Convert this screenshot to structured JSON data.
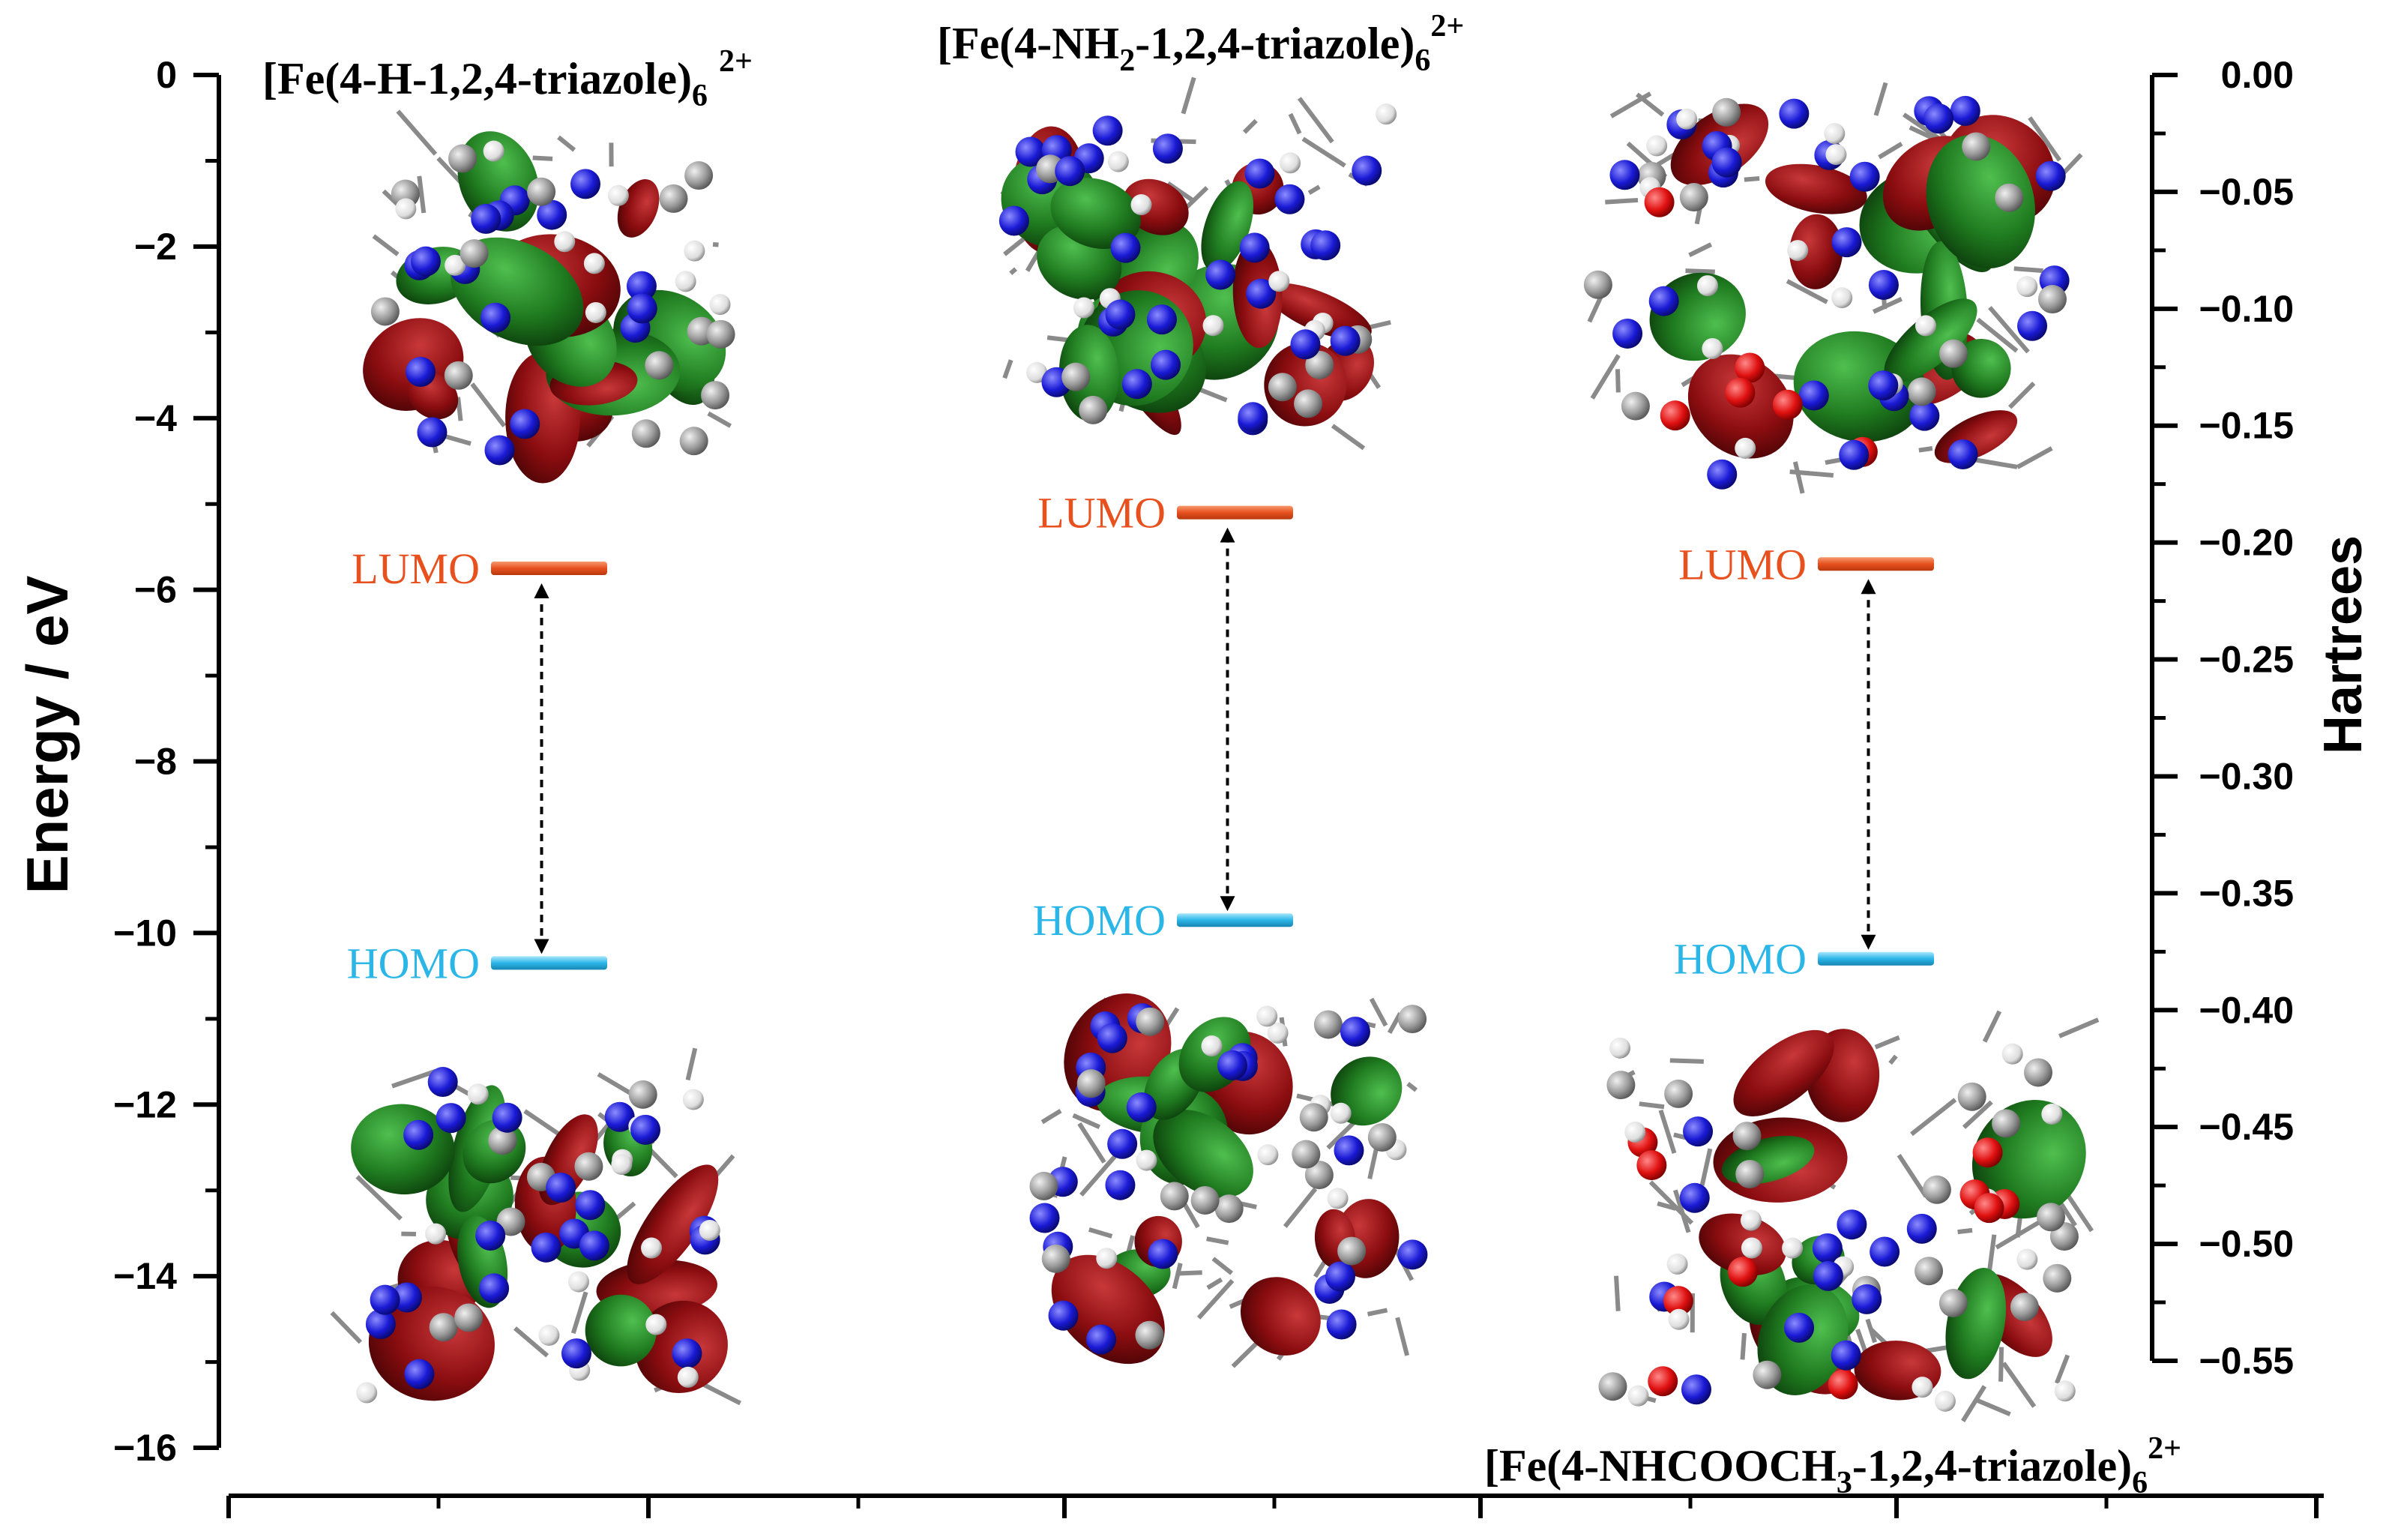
{
  "chart_data": {
    "type": "energy-level-diagram",
    "left_axis": {
      "label": "Energy / eV",
      "min": -16,
      "max": 0,
      "ticks": [
        0,
        -2,
        -4,
        -6,
        -8,
        -10,
        -12,
        -14,
        -16
      ],
      "tick_labels": [
        "0",
        "−2",
        "−4",
        "−6",
        "−8",
        "−10",
        "−12",
        "−14",
        "−16"
      ]
    },
    "right_axis": {
      "label": "Hartrees",
      "min": -0.55,
      "max": 0.0,
      "ticks": [
        0.0,
        -0.05,
        -0.1,
        -0.15,
        -0.2,
        -0.25,
        -0.3,
        -0.35,
        -0.4,
        -0.45,
        -0.5,
        -0.55
      ],
      "tick_labels": [
        "0.00",
        "−0.05",
        "−0.10",
        "−0.15",
        "−0.20",
        "−0.25",
        "−0.30",
        "−0.35",
        "−0.40",
        "−0.45",
        "−0.50",
        "−0.55"
      ]
    },
    "level_labels": {
      "lumo": "LUMO",
      "homo": "HOMO"
    },
    "colors": {
      "lumo": "#e8501e",
      "homo": "#2bb6e8",
      "axis": "#000000",
      "orbital_red": "#8b0d10",
      "orbital_green": "#1f7a1f",
      "atom_n": "#1a1ad6",
      "atom_c": "#9a9a9a",
      "atom_o": "#e01010",
      "atom_h": "#ffffff"
    },
    "compounds": [
      {
        "title_main": "[Fe(4-H-1,2,4-triazole)",
        "title_sub": "6",
        "title_sup": "2+",
        "title_pos": "top",
        "lumo_eV": -5.75,
        "homo_eV": -10.35
      },
      {
        "title_main_a": "[Fe(4-NH",
        "title_sub_a": "2",
        "title_main_b": "-1,2,4-triazole)",
        "title_sub": "6",
        "title_sup": "2+",
        "title_pos": "top",
        "lumo_eV": -5.1,
        "homo_eV": -9.85
      },
      {
        "title_main_a": "[Fe(4-NHCOOCH",
        "title_sub_a": "3",
        "title_main_b": "-1,2,4-triazole)",
        "title_sub": "6",
        "title_sup": "2+",
        "title_pos": "bottom",
        "lumo_eV": -5.7,
        "homo_eV": -10.3
      }
    ]
  }
}
